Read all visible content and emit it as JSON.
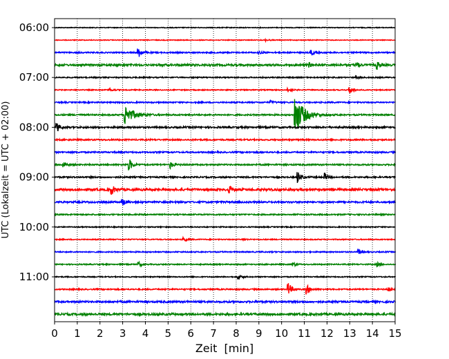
{
  "chart_data": {
    "type": "line",
    "title": "",
    "xlabel": "Zeit  [min]",
    "ylabel": "UTC (Lokalzeit = UTC + 02:00)",
    "xlim": [
      0,
      15
    ],
    "x_ticks": [
      0,
      1,
      2,
      3,
      4,
      5,
      6,
      7,
      8,
      9,
      10,
      11,
      12,
      13,
      14,
      15
    ],
    "y_tick_labels": [
      "06:00",
      "07:00",
      "08:00",
      "09:00",
      "10:00",
      "11:00"
    ],
    "grid": "vertical dotted",
    "colors": [
      "#000000",
      "#ff0000",
      "#0000ff",
      "#008000"
    ],
    "series": [
      {
        "start": "06:00",
        "color": "#000000",
        "noise": 0.55,
        "events": []
      },
      {
        "start": "06:15",
        "color": "#ff0000",
        "noise": 0.55,
        "events": [
          {
            "t": 9.3,
            "amp": 1.2
          }
        ]
      },
      {
        "start": "06:30",
        "color": "#0000ff",
        "noise": 0.9,
        "events": [
          {
            "t": 3.7,
            "amp": 7
          },
          {
            "t": 11.3,
            "amp": 4
          },
          {
            "t": 9.0,
            "amp": 2
          }
        ]
      },
      {
        "start": "06:45",
        "color": "#008000",
        "noise": 1.4,
        "events": [
          {
            "t": 11.2,
            "amp": 3
          },
          {
            "t": 13.3,
            "amp": 4
          },
          {
            "t": 14.2,
            "amp": 6
          }
        ]
      },
      {
        "start": "07:00",
        "color": "#000000",
        "noise": 0.8,
        "events": [
          {
            "t": 13.3,
            "amp": 2
          }
        ]
      },
      {
        "start": "07:15",
        "color": "#ff0000",
        "noise": 0.7,
        "events": [
          {
            "t": 2.4,
            "amp": 2.5
          },
          {
            "t": 10.3,
            "amp": 3
          },
          {
            "t": 13.0,
            "amp": 6
          }
        ]
      },
      {
        "start": "07:30",
        "color": "#0000ff",
        "noise": 0.9,
        "events": [
          {
            "t": 9.5,
            "amp": 2
          }
        ]
      },
      {
        "start": "07:45",
        "color": "#008000",
        "noise": 1.0,
        "events": [
          {
            "t": 3.1,
            "amp": 14
          },
          {
            "t": 10.6,
            "amp": 28
          }
        ]
      },
      {
        "start": "08:00",
        "color": "#000000",
        "noise": 1.2,
        "events": [
          {
            "t": 0.1,
            "amp": 6
          }
        ]
      },
      {
        "start": "08:15",
        "color": "#ff0000",
        "noise": 1.0,
        "events": []
      },
      {
        "start": "08:30",
        "color": "#0000ff",
        "noise": 1.0,
        "events": []
      },
      {
        "start": "08:45",
        "color": "#008000",
        "noise": 1.0,
        "events": [
          {
            "t": 0.4,
            "amp": 4
          },
          {
            "t": 3.3,
            "amp": 8
          },
          {
            "t": 5.1,
            "amp": 5
          }
        ]
      },
      {
        "start": "09:00",
        "color": "#000000",
        "noise": 1.0,
        "events": [
          {
            "t": 10.7,
            "amp": 9
          },
          {
            "t": 11.9,
            "amp": 5
          }
        ]
      },
      {
        "start": "09:15",
        "color": "#ff0000",
        "noise": 1.6,
        "events": [
          {
            "t": 2.5,
            "amp": 7
          },
          {
            "t": 7.7,
            "amp": 5
          }
        ]
      },
      {
        "start": "09:30",
        "color": "#0000ff",
        "noise": 1.2,
        "events": [
          {
            "t": 3.0,
            "amp": 4
          }
        ]
      },
      {
        "start": "09:45",
        "color": "#008000",
        "noise": 0.9,
        "events": []
      },
      {
        "start": "10:00",
        "color": "#000000",
        "noise": 0.7,
        "events": []
      },
      {
        "start": "10:15",
        "color": "#ff0000",
        "noise": 0.7,
        "events": [
          {
            "t": 5.7,
            "amp": 3
          },
          {
            "t": 8.3,
            "amp": 1.5
          }
        ]
      },
      {
        "start": "10:30",
        "color": "#0000ff",
        "noise": 0.8,
        "events": [
          {
            "t": 13.4,
            "amp": 4
          }
        ]
      },
      {
        "start": "10:45",
        "color": "#008000",
        "noise": 0.8,
        "events": [
          {
            "t": 3.7,
            "amp": 3
          },
          {
            "t": 10.5,
            "amp": 3
          },
          {
            "t": 14.2,
            "amp": 3
          }
        ]
      },
      {
        "start": "11:00",
        "color": "#000000",
        "noise": 0.7,
        "events": [
          {
            "t": 8.1,
            "amp": 4
          }
        ]
      },
      {
        "start": "11:15",
        "color": "#ff0000",
        "noise": 0.9,
        "events": [
          {
            "t": 10.3,
            "amp": 9
          },
          {
            "t": 11.1,
            "amp": 7
          },
          {
            "t": 14.7,
            "amp": 3
          }
        ]
      },
      {
        "start": "11:30",
        "color": "#0000ff",
        "noise": 1.3,
        "events": []
      },
      {
        "start": "11:45",
        "color": "#008000",
        "noise": 1.5,
        "events": []
      }
    ]
  }
}
